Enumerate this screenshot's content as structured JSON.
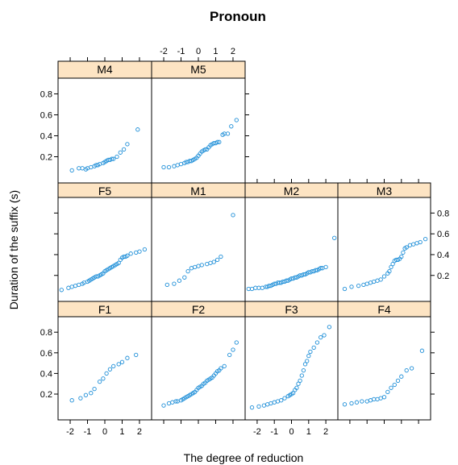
{
  "chart_data": {
    "type": "scatter",
    "title": "Pronoun",
    "xlabel": "The degree of reduction",
    "ylabel": "Duration of the suffix (s)",
    "xlim": [
      -2.7,
      2.7
    ],
    "ylim": [
      -0.05,
      0.95
    ],
    "x_ticks": [
      -2,
      -1,
      0,
      1,
      2
    ],
    "x_tick_labels": [
      "-2",
      "-1",
      "0",
      "1",
      "2"
    ],
    "y_ticks": [
      0.2,
      0.4,
      0.6,
      0.8
    ],
    "y_tick_labels": [
      "0.2",
      "0.4",
      "0.6",
      "0.8"
    ],
    "grid": false,
    "colors": {
      "point": "#1f8fd8",
      "strip": "#fde4c3",
      "frame": "#000000"
    },
    "panels": [
      {
        "name": "M4",
        "x": [
          -1.9,
          -1.5,
          -1.3,
          -1.1,
          -1.0,
          -0.8,
          -0.6,
          -0.5,
          -0.4,
          -0.3,
          -0.1,
          0.0,
          0.1,
          0.2,
          0.3,
          0.4,
          0.5,
          0.7,
          0.9,
          1.1,
          1.3,
          1.9
        ],
        "y": [
          0.07,
          0.09,
          0.09,
          0.08,
          0.09,
          0.1,
          0.11,
          0.12,
          0.12,
          0.13,
          0.14,
          0.15,
          0.16,
          0.17,
          0.17,
          0.18,
          0.18,
          0.2,
          0.24,
          0.27,
          0.32,
          0.46
        ]
      },
      {
        "name": "M5",
        "x": [
          -2.0,
          -1.7,
          -1.4,
          -1.2,
          -1.0,
          -0.8,
          -0.7,
          -0.6,
          -0.5,
          -0.4,
          -0.3,
          -0.2,
          -0.1,
          0.0,
          0.1,
          0.2,
          0.3,
          0.4,
          0.5,
          0.6,
          0.7,
          0.8,
          0.9,
          1.0,
          1.1,
          1.2,
          1.4,
          1.5,
          1.7,
          1.9,
          2.2
        ],
        "y": [
          0.1,
          0.1,
          0.11,
          0.12,
          0.13,
          0.14,
          0.15,
          0.15,
          0.16,
          0.16,
          0.17,
          0.18,
          0.19,
          0.21,
          0.23,
          0.25,
          0.26,
          0.27,
          0.27,
          0.29,
          0.31,
          0.32,
          0.33,
          0.33,
          0.34,
          0.34,
          0.41,
          0.42,
          0.42,
          0.49,
          0.55
        ]
      },
      {
        "name": "F5",
        "x": [
          -2.5,
          -2.1,
          -1.9,
          -1.7,
          -1.5,
          -1.3,
          -1.2,
          -1.0,
          -0.9,
          -0.8,
          -0.7,
          -0.6,
          -0.5,
          -0.4,
          -0.3,
          -0.2,
          -0.1,
          0.0,
          0.1,
          0.2,
          0.3,
          0.4,
          0.5,
          0.6,
          0.7,
          0.8,
          0.9,
          1.0,
          1.1,
          1.2,
          1.3,
          1.5,
          1.8,
          2.0,
          2.3
        ],
        "y": [
          0.06,
          0.08,
          0.09,
          0.1,
          0.11,
          0.12,
          0.13,
          0.14,
          0.15,
          0.16,
          0.17,
          0.18,
          0.19,
          0.19,
          0.2,
          0.21,
          0.22,
          0.24,
          0.25,
          0.26,
          0.27,
          0.28,
          0.29,
          0.3,
          0.31,
          0.32,
          0.35,
          0.37,
          0.38,
          0.38,
          0.39,
          0.41,
          0.42,
          0.43,
          0.45
        ]
      },
      {
        "name": "M1",
        "x": [
          -1.8,
          -1.4,
          -1.1,
          -0.8,
          -0.6,
          -0.4,
          -0.2,
          0.0,
          0.2,
          0.5,
          0.7,
          0.9,
          1.1,
          1.3,
          2.0
        ],
        "y": [
          0.11,
          0.12,
          0.15,
          0.18,
          0.24,
          0.27,
          0.28,
          0.29,
          0.3,
          0.31,
          0.32,
          0.33,
          0.35,
          0.38,
          0.78
        ]
      },
      {
        "name": "M2",
        "x": [
          -2.5,
          -2.3,
          -2.1,
          -1.9,
          -1.7,
          -1.5,
          -1.4,
          -1.3,
          -1.2,
          -1.1,
          -1.0,
          -0.9,
          -0.8,
          -0.7,
          -0.6,
          -0.5,
          -0.4,
          -0.3,
          -0.2,
          -0.1,
          0.0,
          0.1,
          0.2,
          0.3,
          0.4,
          0.5,
          0.6,
          0.7,
          0.8,
          0.9,
          1.0,
          1.1,
          1.2,
          1.3,
          1.4,
          1.5,
          1.6,
          1.7,
          1.8,
          2.0,
          2.5
        ],
        "y": [
          0.07,
          0.07,
          0.08,
          0.08,
          0.08,
          0.09,
          0.09,
          0.1,
          0.1,
          0.11,
          0.12,
          0.12,
          0.13,
          0.13,
          0.13,
          0.14,
          0.14,
          0.15,
          0.15,
          0.16,
          0.17,
          0.17,
          0.18,
          0.18,
          0.19,
          0.2,
          0.2,
          0.21,
          0.21,
          0.22,
          0.23,
          0.23,
          0.24,
          0.24,
          0.25,
          0.25,
          0.26,
          0.27,
          0.27,
          0.28,
          0.56
        ]
      },
      {
        "name": "M3",
        "x": [
          -2.3,
          -1.9,
          -1.5,
          -1.2,
          -1.0,
          -0.8,
          -0.6,
          -0.4,
          -0.2,
          0.0,
          0.2,
          0.3,
          0.4,
          0.5,
          0.6,
          0.7,
          0.8,
          0.9,
          1.0,
          1.1,
          1.2,
          1.3,
          1.5,
          1.7,
          1.9,
          2.1,
          2.4
        ],
        "y": [
          0.07,
          0.09,
          0.1,
          0.11,
          0.12,
          0.13,
          0.14,
          0.15,
          0.16,
          0.19,
          0.22,
          0.24,
          0.28,
          0.31,
          0.34,
          0.35,
          0.35,
          0.36,
          0.38,
          0.42,
          0.46,
          0.47,
          0.49,
          0.5,
          0.51,
          0.52,
          0.55
        ]
      },
      {
        "name": "F1",
        "x": [
          -1.9,
          -1.4,
          -1.1,
          -0.8,
          -0.6,
          -0.3,
          -0.1,
          0.1,
          0.3,
          0.5,
          0.8,
          1.0,
          1.3,
          1.8
        ],
        "y": [
          0.14,
          0.16,
          0.19,
          0.21,
          0.25,
          0.32,
          0.35,
          0.4,
          0.44,
          0.47,
          0.49,
          0.51,
          0.55,
          0.58
        ]
      },
      {
        "name": "F2",
        "x": [
          -2.0,
          -1.7,
          -1.5,
          -1.3,
          -1.2,
          -1.0,
          -0.9,
          -0.8,
          -0.7,
          -0.6,
          -0.5,
          -0.4,
          -0.3,
          -0.2,
          -0.1,
          0.0,
          0.1,
          0.2,
          0.3,
          0.4,
          0.5,
          0.6,
          0.7,
          0.8,
          0.9,
          1.0,
          1.1,
          1.2,
          1.3,
          1.5,
          1.8,
          2.0,
          2.2
        ],
        "y": [
          0.09,
          0.11,
          0.12,
          0.13,
          0.13,
          0.14,
          0.15,
          0.16,
          0.17,
          0.18,
          0.19,
          0.2,
          0.21,
          0.22,
          0.24,
          0.26,
          0.27,
          0.28,
          0.3,
          0.31,
          0.33,
          0.34,
          0.35,
          0.36,
          0.38,
          0.4,
          0.42,
          0.43,
          0.45,
          0.47,
          0.58,
          0.63,
          0.7
        ]
      },
      {
        "name": "F3",
        "x": [
          -2.3,
          -1.9,
          -1.6,
          -1.4,
          -1.2,
          -1.0,
          -0.8,
          -0.6,
          -0.4,
          -0.2,
          -0.1,
          0.0,
          0.1,
          0.2,
          0.3,
          0.4,
          0.5,
          0.6,
          0.7,
          0.8,
          0.9,
          1.0,
          1.1,
          1.3,
          1.5,
          1.7,
          1.9,
          2.2
        ],
        "y": [
          0.07,
          0.08,
          0.09,
          0.1,
          0.11,
          0.12,
          0.13,
          0.14,
          0.16,
          0.18,
          0.19,
          0.2,
          0.21,
          0.24,
          0.26,
          0.3,
          0.33,
          0.38,
          0.43,
          0.49,
          0.52,
          0.57,
          0.61,
          0.65,
          0.7,
          0.75,
          0.77,
          0.85
        ]
      },
      {
        "name": "F4",
        "x": [
          -2.3,
          -1.9,
          -1.6,
          -1.3,
          -1.0,
          -0.8,
          -0.6,
          -0.4,
          -0.2,
          0.0,
          0.2,
          0.4,
          0.6,
          0.8,
          1.0,
          1.3,
          1.6,
          2.2
        ],
        "y": [
          0.1,
          0.11,
          0.12,
          0.13,
          0.13,
          0.14,
          0.15,
          0.15,
          0.16,
          0.17,
          0.22,
          0.26,
          0.29,
          0.33,
          0.37,
          0.43,
          0.45,
          0.62
        ]
      }
    ]
  }
}
